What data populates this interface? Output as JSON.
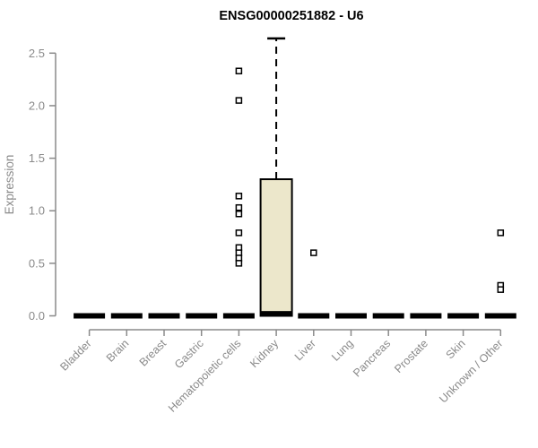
{
  "chart_data": {
    "type": "boxplot",
    "title": "ENSG00000251882 - U6",
    "xlabel": "",
    "ylabel": "Expression",
    "ylim": [
      0,
      2.5
    ],
    "yticks": [
      0.0,
      0.5,
      1.0,
      1.5,
      2.0,
      2.5
    ],
    "grid": false,
    "legend": "none",
    "categories": [
      "Bladder",
      "Brain",
      "Breast",
      "Gastric",
      "Hematopoietic cells",
      "Kidney",
      "Liver",
      "Lung",
      "Pancreas",
      "Prostate",
      "Skin",
      "Unknown / Other"
    ],
    "boxes": [
      {
        "category": "Bladder",
        "q1": 0,
        "median": 0,
        "q3": 0,
        "whisker_low": 0,
        "whisker_high": 0,
        "outliers": []
      },
      {
        "category": "Brain",
        "q1": 0,
        "median": 0,
        "q3": 0,
        "whisker_low": 0,
        "whisker_high": 0,
        "outliers": []
      },
      {
        "category": "Breast",
        "q1": 0,
        "median": 0,
        "q3": 0,
        "whisker_low": 0,
        "whisker_high": 0,
        "outliers": []
      },
      {
        "category": "Gastric",
        "q1": 0,
        "median": 0,
        "q3": 0,
        "whisker_low": 0,
        "whisker_high": 0,
        "outliers": []
      },
      {
        "category": "Hematopoietic cells",
        "q1": 0,
        "median": 0,
        "q3": 0,
        "whisker_low": 0,
        "whisker_high": 0,
        "outliers": [
          2.33,
          2.05,
          1.14,
          1.03,
          0.97,
          0.79,
          0.65,
          0.6,
          0.55,
          0.5
        ]
      },
      {
        "category": "Kidney",
        "q1": 0,
        "median": 0.02,
        "q3": 1.3,
        "whisker_low": 0,
        "whisker_high": 2.64,
        "outliers": []
      },
      {
        "category": "Liver",
        "q1": 0,
        "median": 0,
        "q3": 0,
        "whisker_low": 0,
        "whisker_high": 0,
        "outliers": [
          0.6
        ]
      },
      {
        "category": "Lung",
        "q1": 0,
        "median": 0,
        "q3": 0,
        "whisker_low": 0,
        "whisker_high": 0,
        "outliers": []
      },
      {
        "category": "Pancreas",
        "q1": 0,
        "median": 0,
        "q3": 0,
        "whisker_low": 0,
        "whisker_high": 0,
        "outliers": []
      },
      {
        "category": "Prostate",
        "q1": 0,
        "median": 0,
        "q3": 0,
        "whisker_low": 0,
        "whisker_high": 0,
        "outliers": []
      },
      {
        "category": "Skin",
        "q1": 0,
        "median": 0,
        "q3": 0,
        "whisker_low": 0,
        "whisker_high": 0,
        "outliers": []
      },
      {
        "category": "Unknown / Other",
        "q1": 0,
        "median": 0,
        "q3": 0,
        "whisker_low": 0,
        "whisker_high": 0,
        "outliers": [
          0.79,
          0.29,
          0.25
        ]
      }
    ],
    "colors": {
      "box_fill": "#ece7cb",
      "box_stroke": "#000000",
      "median": "#000000",
      "whisker": "#000000",
      "outlier_stroke": "#000000",
      "outlier_fill": "#ffffff",
      "axis": "#8a8a8a",
      "tick_label": "#8a8a8a",
      "title": "#000000",
      "background": "#ffffff"
    }
  }
}
